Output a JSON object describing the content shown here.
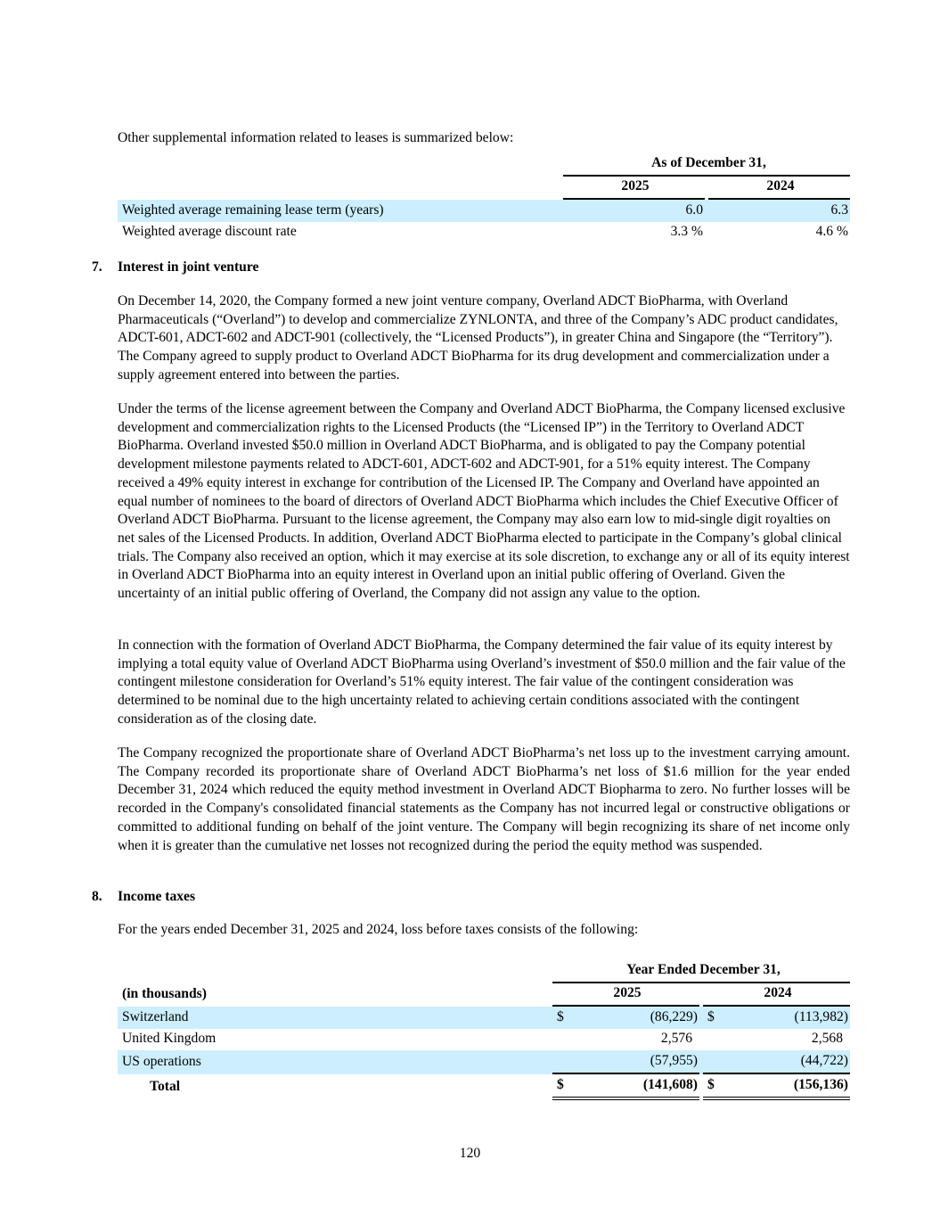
{
  "intro": "Other supplemental information related to leases is summarized below:",
  "lease_table": {
    "group_header": "As of December 31,",
    "columns": [
      "2025",
      "2024"
    ],
    "rows": [
      {
        "label": "Weighted average remaining lease term (years)",
        "values": [
          "6.0",
          "6.3"
        ]
      },
      {
        "label": "Weighted average discount rate",
        "values": [
          "3.3 %",
          "4.6 %"
        ]
      }
    ]
  },
  "section7": {
    "number": "7.",
    "title": "Interest in joint venture",
    "paragraphs": [
      "On December 14, 2020, the Company formed a new joint venture company, Overland ADCT BioPharma, with Overland Pharmaceuticals (“Overland”) to develop and commercialize ZYNLONTA, and three of the Company’s ADC product candidates, ADCT-601, ADCT-602 and ADCT-901 (collectively, the “Licensed Products”), in greater China and Singapore (the “Territory”). The Company agreed to supply product to Overland ADCT BioPharma for its drug development and commercialization under a supply agreement entered into between the parties.",
      "Under the terms of the license agreement between the Company and Overland ADCT BioPharma, the Company licensed exclusive development and commercialization rights to the Licensed Products (the “Licensed IP”) in the Territory to Overland ADCT BioPharma. Overland invested $50.0 million in Overland ADCT BioPharma, and is obligated to pay the Company potential development milestone payments related to ADCT-601, ADCT-602 and ADCT-901, for a 51% equity interest. The Company received a 49% equity interest in exchange for contribution of the Licensed IP. The Company and Overland have appointed an equal number of nominees to the board of directors of Overland ADCT BioPharma which includes the Chief Executive Officer of Overland ADCT BioPharma. Pursuant to the license agreement, the Company may also earn low to mid-single digit royalties on net sales of the Licensed Products. In addition, Overland ADCT BioPharma elected to participate in the Company’s global clinical trials. The Company also received an option, which it may exercise at its sole discretion, to exchange any or all of its equity interest in Overland ADCT BioPharma into an equity interest in Overland upon an initial public offering of Overland. Given the uncertainty of an initial public offering of Overland, the Company did not assign any value to the option.",
      "In connection with the formation of Overland ADCT BioPharma, the Company determined the fair value of its equity interest by implying a total equity value of Overland ADCT BioPharma using Overland’s investment of $50.0 million and the fair value of the contingent milestone consideration for Overland’s 51% equity interest. The fair value of the contingent consideration was determined to be nominal due to the high uncertainty related to achieving certain conditions associated with the contingent consideration as of the closing date.",
      "The Company recognized the proportionate share of Overland ADCT BioPharma’s net loss up to the investment carrying amount. The Company recorded its proportionate share of Overland ADCT BioPharma’s net loss of $1.6 million for the year ended December 31, 2024 which reduced the equity method investment in Overland ADCT Biopharma to zero. No further losses will be recorded in the Company's consolidated financial statements as the Company has not incurred legal or constructive obligations or committed to additional funding on behalf of the joint venture. The Company will begin recognizing its share of net income only when it is greater than the cumulative net losses not recognized during the period the equity method was suspended."
    ]
  },
  "section8": {
    "number": "8.",
    "title": "Income taxes",
    "intro": "For the years ended December 31, 2025 and 2024, loss before taxes consists of the following:"
  },
  "tax_table": {
    "group_header": "Year Ended December 31,",
    "unit_label": "(in thousands)",
    "columns": [
      "2025",
      "2024"
    ],
    "currency": "$",
    "rows": [
      {
        "label": "Switzerland",
        "values": [
          "(86,229)",
          "(113,982)"
        ],
        "currency": true
      },
      {
        "label": "United Kingdom",
        "values": [
          "2,576",
          "2,568"
        ]
      },
      {
        "label": "US operations",
        "values": [
          "(57,955)",
          "(44,722)"
        ]
      }
    ],
    "total": {
      "label": "Total",
      "values": [
        "(141,608)",
        "(156,136)"
      ]
    }
  },
  "page_number": "120",
  "colors": {
    "row_shade": "#cceeff"
  }
}
